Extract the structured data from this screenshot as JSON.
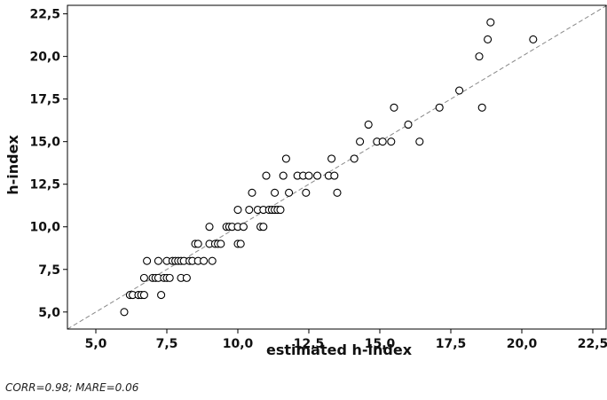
{
  "chart_data": {
    "type": "scatter",
    "title": "",
    "xlabel": "estimated h-index",
    "ylabel": "h-index",
    "xlim": [
      4.0,
      23.0
    ],
    "ylim": [
      4.0,
      23.0
    ],
    "x_ticks": [
      "5,0",
      "7,5",
      "10,0",
      "12,5",
      "15,0",
      "17,5",
      "20,0",
      "22,5"
    ],
    "y_ticks": [
      "5,0",
      "7,5",
      "10,0",
      "12,5",
      "15,0",
      "17,5",
      "20,0",
      "22,5"
    ],
    "x_tick_values": [
      5,
      7.5,
      10,
      12.5,
      15,
      17.5,
      20,
      22.5
    ],
    "y_tick_values": [
      5,
      7.5,
      10,
      12.5,
      15,
      17.5,
      20,
      22.5
    ],
    "reference_line": "y = x (dashed)",
    "grid": false,
    "series": [
      {
        "marker": "open-circle",
        "points": [
          [
            6.0,
            5
          ],
          [
            6.2,
            6
          ],
          [
            6.3,
            6
          ],
          [
            6.5,
            6
          ],
          [
            6.6,
            6
          ],
          [
            6.7,
            6
          ],
          [
            6.7,
            7
          ],
          [
            6.8,
            8
          ],
          [
            7.0,
            7
          ],
          [
            7.1,
            7
          ],
          [
            7.2,
            7
          ],
          [
            7.2,
            8
          ],
          [
            7.3,
            6
          ],
          [
            7.4,
            7
          ],
          [
            7.5,
            7
          ],
          [
            7.5,
            8
          ],
          [
            7.6,
            7
          ],
          [
            7.7,
            8
          ],
          [
            7.8,
            8
          ],
          [
            7.9,
            8
          ],
          [
            8.0,
            7
          ],
          [
            8.0,
            8
          ],
          [
            8.1,
            8
          ],
          [
            8.2,
            7
          ],
          [
            8.3,
            8
          ],
          [
            8.4,
            8
          ],
          [
            8.5,
            9
          ],
          [
            8.6,
            8
          ],
          [
            8.6,
            9
          ],
          [
            8.8,
            8
          ],
          [
            9.0,
            9
          ],
          [
            9.0,
            10
          ],
          [
            9.1,
            8
          ],
          [
            9.2,
            9
          ],
          [
            9.3,
            9
          ],
          [
            9.4,
            9
          ],
          [
            9.6,
            10
          ],
          [
            9.7,
            10
          ],
          [
            9.8,
            10
          ],
          [
            10.0,
            9
          ],
          [
            10.0,
            10
          ],
          [
            10.0,
            11
          ],
          [
            10.1,
            9
          ],
          [
            10.2,
            10
          ],
          [
            10.4,
            11
          ],
          [
            10.5,
            12
          ],
          [
            10.7,
            11
          ],
          [
            10.8,
            10
          ],
          [
            10.9,
            11
          ],
          [
            10.9,
            10
          ],
          [
            11.0,
            13
          ],
          [
            11.1,
            11
          ],
          [
            11.2,
            11
          ],
          [
            11.3,
            12
          ],
          [
            11.3,
            11
          ],
          [
            11.4,
            11
          ],
          [
            11.5,
            11
          ],
          [
            11.6,
            13
          ],
          [
            11.7,
            14
          ],
          [
            11.8,
            12
          ],
          [
            12.1,
            13
          ],
          [
            12.3,
            13
          ],
          [
            12.4,
            12
          ],
          [
            12.5,
            13
          ],
          [
            12.8,
            13
          ],
          [
            13.2,
            13
          ],
          [
            13.3,
            14
          ],
          [
            13.4,
            13
          ],
          [
            13.5,
            12
          ],
          [
            14.1,
            14
          ],
          [
            14.3,
            15
          ],
          [
            14.6,
            16
          ],
          [
            14.9,
            15
          ],
          [
            15.1,
            15
          ],
          [
            15.4,
            15
          ],
          [
            15.5,
            17
          ],
          [
            16.0,
            16
          ],
          [
            16.4,
            15
          ],
          [
            17.1,
            17
          ],
          [
            17.8,
            18
          ],
          [
            18.5,
            20
          ],
          [
            18.6,
            17
          ],
          [
            18.8,
            21
          ],
          [
            18.9,
            22
          ],
          [
            20.4,
            21
          ]
        ]
      }
    ]
  },
  "footnote": "CORR=0.98; MARE=0.06"
}
